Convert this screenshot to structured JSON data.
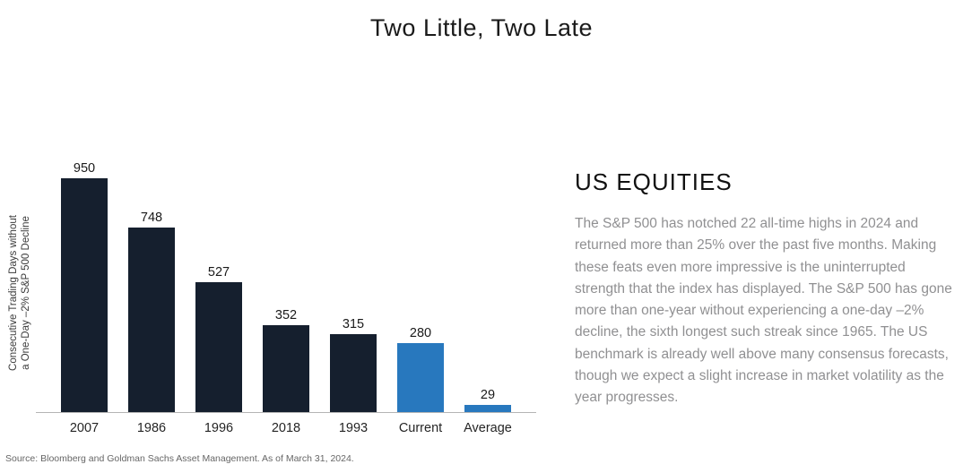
{
  "title": "Two Little, Two Late",
  "right_panel": {
    "heading": "US EQUITIES",
    "body": "The S&P 500 has notched 22 all-time highs in 2024 and returned more than 25% over the past five months. Making these feats even more impressive is the uninterrupted strength that the index has displayed. The S&P 500 has gone more than one-year without experiencing a one-day –2% decline, the sixth longest such streak since 1965. The US benchmark is already well above many consensus forecasts, though we expect a slight increase in market volatility as the year progresses."
  },
  "source": "Source: Bloomberg and Goldman Sachs Asset Management. As of March 31, 2024.",
  "chart_data": {
    "type": "bar",
    "categories": [
      "2007",
      "1986",
      "1996",
      "2018",
      "1993",
      "Current",
      "Average"
    ],
    "values": [
      950,
      748,
      527,
      352,
      315,
      280,
      29
    ],
    "title": "",
    "xlabel": "",
    "ylabel": "Consecutive Trading Days without\na One-Day –2% S&P 500 Decline",
    "ylim": [
      0,
      1000
    ],
    "grid": false,
    "legend": "none",
    "data_labels": true,
    "bar_colors": [
      "dark",
      "dark",
      "dark",
      "dark",
      "dark",
      "blue",
      "blue"
    ],
    "colors": {
      "dark": "#151f2e",
      "blue": "#2878be"
    }
  }
}
